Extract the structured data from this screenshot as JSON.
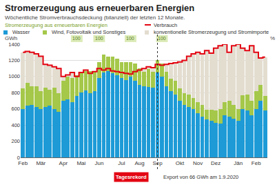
{
  "chart_data": {
    "type": "bar",
    "stacked": true,
    "title": "Stromerzeugung aus erneuerbaren Energien",
    "subtitle": "Wöchentliche Stromverbrauchsdeckung (bilanziell) der letzten 12 Monate.",
    "legend_heading": "Stromerzeugung aus erneuerbaren Energien",
    "y_label": "GWh",
    "y2_label": "%",
    "legend": "top",
    "grid": true,
    "categories": [
      "Feb",
      null,
      null,
      null,
      "Mär",
      null,
      null,
      null,
      null,
      "Apr",
      null,
      null,
      null,
      "Mai",
      null,
      null,
      null,
      "Jun",
      null,
      null,
      null,
      null,
      "Jul",
      null,
      null,
      null,
      "Aug",
      null,
      null,
      null,
      "Sep",
      null,
      null,
      null,
      null,
      "Okt",
      null,
      null,
      null,
      "Nov",
      null,
      null,
      null,
      "Dez",
      null,
      null,
      null,
      null,
      "Jän",
      null,
      null,
      null,
      "Feb",
      null,
      null
    ],
    "series": [
      {
        "name": "Wasser",
        "color": "#1e9bd7",
        "type": "bar",
        "values": [
          600,
          640,
          650,
          620,
          600,
          620,
          640,
          600,
          560,
          700,
          720,
          680,
          760,
          800,
          830,
          790,
          820,
          980,
          1050,
          1070,
          1040,
          1020,
          980,
          960,
          1000,
          950,
          900,
          880,
          870,
          860,
          1050,
          1000,
          880,
          820,
          780,
          700,
          650,
          620,
          600,
          550,
          500,
          470,
          450,
          430,
          420,
          520,
          500,
          480,
          450,
          600,
          580,
          520,
          600,
          700,
          580
        ]
      },
      {
        "name": "Wind, Fotovoltaik und Sonstiges",
        "color": "#a5c84a",
        "type": "bar",
        "values": [
          250,
          280,
          230,
          260,
          220,
          240,
          200,
          260,
          230,
          250,
          280,
          300,
          260,
          260,
          240,
          280,
          250,
          200,
          220,
          180,
          210,
          200,
          200,
          220,
          180,
          210,
          200,
          180,
          220,
          200,
          150,
          160,
          180,
          150,
          170,
          150,
          140,
          160,
          130,
          130,
          150,
          120,
          140,
          150,
          180,
          160,
          200,
          170,
          150,
          170,
          200,
          180,
          220,
          200,
          180
        ]
      },
      {
        "name": "konventionelle Stromerzeugung und Stromimporte",
        "color": "#e3ddd0",
        "type": "bar",
        "values": [
          450,
          390,
          420,
          400,
          430,
          290,
          300,
          260,
          310,
          50,
          20,
          70,
          0,
          0,
          10,
          0,
          0,
          0,
          0,
          0,
          0,
          0,
          0,
          0,
          0,
          0,
          0,
          40,
          30,
          50,
          0,
          0,
          90,
          190,
          220,
          330,
          410,
          470,
          550,
          620,
          630,
          730,
          700,
          770,
          780,
          720,
          600,
          730,
          800,
          580,
          540,
          680,
          480,
          330,
          480
        ]
      },
      {
        "name": "Verbrauch",
        "color": "#e30613",
        "type": "line",
        "values": [
          1300,
          1310,
          1300,
          1280,
          1250,
          1150,
          1140,
          1120,
          1100,
          1000,
          1020,
          1050,
          1000,
          1050,
          1080,
          1040,
          1060,
          1100,
          1080,
          1100,
          1070,
          1060,
          1050,
          1040,
          1030,
          1060,
          1080,
          1100,
          1120,
          1110,
          1150,
          1140,
          1150,
          1160,
          1170,
          1180,
          1200,
          1250,
          1280,
          1300,
          1280,
          1320,
          1290,
          1350,
          1380,
          1400,
          1300,
          1380,
          1400,
          1350,
          1320,
          1380,
          1300,
          1230,
          1240
        ]
      }
    ],
    "ylim": [
      0,
      1400
    ],
    "yticks": [
      0,
      200,
      400,
      600,
      800,
      1000,
      1200,
      1400
    ],
    "coverage_labels": [
      {
        "text": "100",
        "x": 12
      },
      {
        "text": "100",
        "x": 17
      },
      {
        "text": "100",
        "x": 24
      },
      {
        "text": "100",
        "x": 31
      }
    ],
    "record": {
      "label": "Tagesrekord",
      "text": "Export von 66 GWh am 1.9.2020",
      "x": 30
    }
  }
}
